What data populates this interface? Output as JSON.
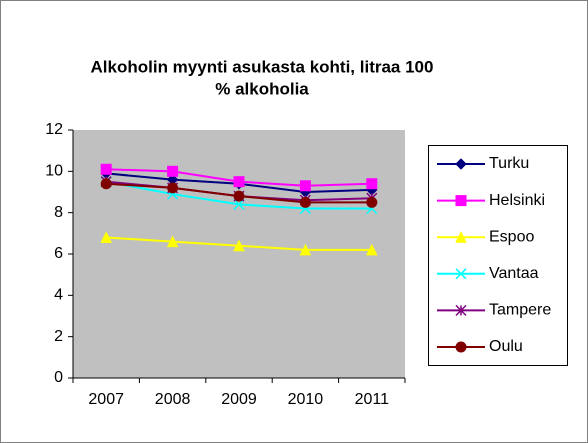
{
  "chart_data": {
    "type": "line",
    "title_lines": [
      "Alkoholin myynti asukasta kohti, litraa 100",
      "% alkoholia"
    ],
    "categories": [
      "2007",
      "2008",
      "2009",
      "2010",
      "2011"
    ],
    "ylim": [
      0,
      12
    ],
    "yticks": [
      0,
      2,
      4,
      6,
      8,
      10,
      12
    ],
    "grid": false,
    "legend": "right",
    "series": [
      {
        "name": "Turku",
        "color": "#000080",
        "marker": "diamond",
        "values": [
          9.9,
          9.6,
          9.4,
          9.0,
          9.1
        ]
      },
      {
        "name": "Helsinki",
        "color": "#ff00ff",
        "marker": "square",
        "values": [
          10.1,
          10.0,
          9.5,
          9.3,
          9.4
        ]
      },
      {
        "name": "Espoo",
        "color": "#ffff00",
        "marker": "triangle",
        "values": [
          6.8,
          6.6,
          6.4,
          6.2,
          6.2
        ]
      },
      {
        "name": "Vantaa",
        "color": "#00ffff",
        "marker": "x",
        "values": [
          9.5,
          8.9,
          8.4,
          8.2,
          8.2
        ]
      },
      {
        "name": "Tampere",
        "color": "#800080",
        "marker": "star",
        "values": [
          9.5,
          9.2,
          8.8,
          8.6,
          8.7
        ]
      },
      {
        "name": "Oulu",
        "color": "#800000",
        "marker": "circle",
        "values": [
          9.4,
          9.2,
          8.8,
          8.5,
          8.5
        ]
      }
    ]
  }
}
